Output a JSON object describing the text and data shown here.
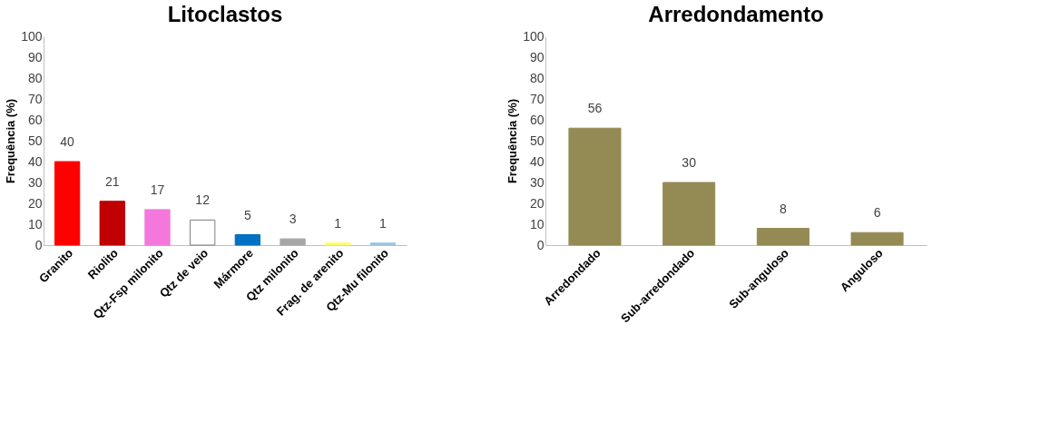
{
  "chart_data": [
    {
      "type": "bar",
      "title": "Litoclastos",
      "ylabel": "Frequência (%)",
      "categories": [
        "Granito",
        "Riolito",
        "Qtz-Fsp milonito",
        "Qtz de veio",
        "Mármore",
        "Qtz milonito",
        "Frag. de arenito",
        "Qtz-Mu filonito"
      ],
      "values": [
        40,
        21,
        17,
        12,
        5,
        3,
        1,
        1
      ],
      "colors": [
        "#ff0000",
        "#c00000",
        "#f478dc",
        "#ffffff",
        "#0070c0",
        "#a6a6a6",
        "#ffff66",
        "#9dc3e6"
      ],
      "ylim": [
        0,
        100
      ],
      "yticks": [
        0,
        10,
        20,
        30,
        40,
        50,
        60,
        70,
        80,
        90,
        100
      ],
      "grid": false,
      "data_labels": true
    },
    {
      "type": "bar",
      "title": "Arredondamento",
      "ylabel": "Frequência (%)",
      "categories": [
        "Arredondado",
        "Sub-arredondado",
        "Sub-anguloso",
        "Anguloso"
      ],
      "values": [
        56,
        30,
        8,
        6
      ],
      "colors": [
        "#948a54",
        "#948a54",
        "#948a54",
        "#948a54"
      ],
      "ylim": [
        0,
        100
      ],
      "yticks": [
        0,
        10,
        20,
        30,
        40,
        50,
        60,
        70,
        80,
        90,
        100
      ],
      "grid": false,
      "data_labels": true
    }
  ]
}
